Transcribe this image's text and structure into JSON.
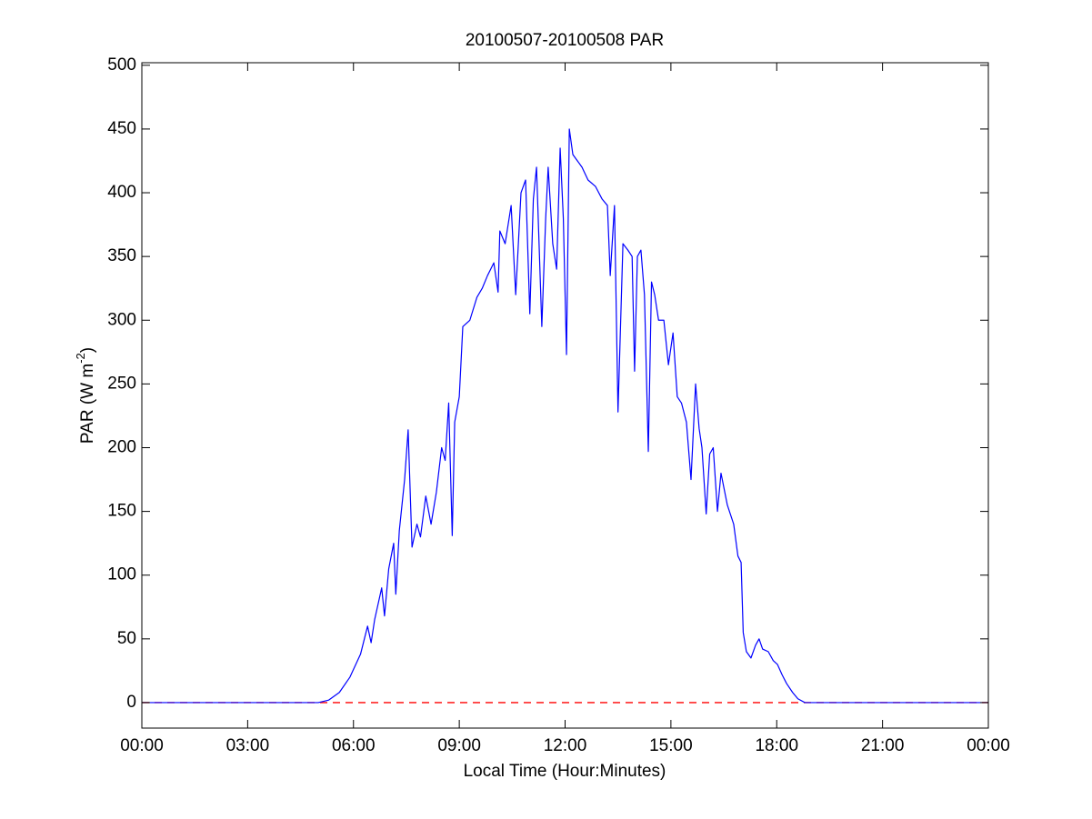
{
  "chart_data": {
    "type": "line",
    "title": "20100507-20100508 PAR",
    "xlabel": "Local Time (Hour:Minutes)",
    "ylabel": "PAR (W m",
    "ylabel_superscript": "-2",
    "ylabel_suffix": ")",
    "x": [
      0,
      5.0,
      5.3,
      5.6,
      5.9,
      6.2,
      6.4,
      6.5,
      6.6,
      6.8,
      6.88,
      7.0,
      7.14,
      7.2,
      7.3,
      7.45,
      7.55,
      7.66,
      7.8,
      7.9,
      8.05,
      8.2,
      8.35,
      8.5,
      8.6,
      8.7,
      8.8,
      8.87,
      9.0,
      9.1,
      9.3,
      9.5,
      9.65,
      9.8,
      9.98,
      10.1,
      10.15,
      10.3,
      10.47,
      10.6,
      10.75,
      10.88,
      11.0,
      11.1,
      11.19,
      11.34,
      11.45,
      11.52,
      11.65,
      11.76,
      11.86,
      11.95,
      12.04,
      12.12,
      12.22,
      12.35,
      12.48,
      12.65,
      12.86,
      13.05,
      13.2,
      13.28,
      13.4,
      13.5,
      13.64,
      13.78,
      13.9,
      13.97,
      14.05,
      14.15,
      14.25,
      14.36,
      14.45,
      14.54,
      14.65,
      14.8,
      14.93,
      15.06,
      15.18,
      15.3,
      15.44,
      15.57,
      15.7,
      15.8,
      15.88,
      16.0,
      16.1,
      16.2,
      16.32,
      16.42,
      16.6,
      16.78,
      16.9,
      16.99,
      17.05,
      17.14,
      17.27,
      17.4,
      17.5,
      17.6,
      17.76,
      17.9,
      18.02,
      18.15,
      18.28,
      18.45,
      18.6,
      18.8,
      24
    ],
    "series": [
      {
        "color": "#0000ff",
        "values": [
          0,
          0,
          2,
          8,
          20,
          38,
          60,
          47,
          65,
          90,
          68,
          105,
          125,
          85,
          135,
          175,
          214,
          122,
          140,
          130,
          162,
          140,
          165,
          200,
          190,
          235,
          131,
          220,
          240,
          295,
          300,
          318,
          325,
          335,
          345,
          322,
          370,
          360,
          390,
          320,
          400,
          410,
          305,
          395,
          420,
          295,
          380,
          420,
          360,
          340,
          435,
          380,
          273,
          450,
          430,
          425,
          420,
          410,
          405,
          395,
          390,
          335,
          390,
          228,
          360,
          355,
          350,
          260,
          350,
          355,
          320,
          197,
          330,
          320,
          300,
          300,
          265,
          290,
          240,
          235,
          220,
          175,
          250,
          215,
          200,
          148,
          195,
          200,
          150,
          180,
          155,
          140,
          115,
          110,
          55,
          40,
          35,
          45,
          50,
          42,
          40,
          33,
          30,
          22,
          15,
          8,
          3,
          0,
          0
        ]
      }
    ],
    "reference_line": {
      "value": 0,
      "color": "#ff0000"
    },
    "xlim": [
      0,
      24
    ],
    "xticks": [
      {
        "value": 0,
        "label": "00:00"
      },
      {
        "value": 3,
        "label": "03:00"
      },
      {
        "value": 6,
        "label": "06:00"
      },
      {
        "value": 9,
        "label": "09:00"
      },
      {
        "value": 12,
        "label": "12:00"
      },
      {
        "value": 15,
        "label": "15:00"
      },
      {
        "value": 18,
        "label": "18:00"
      },
      {
        "value": 21,
        "label": "21:00"
      },
      {
        "value": 24,
        "label": "00:00"
      }
    ],
    "ylim": [
      -20,
      502
    ],
    "yticks": [
      0,
      50,
      100,
      150,
      200,
      250,
      300,
      350,
      400,
      450,
      500
    ],
    "grid": false
  }
}
